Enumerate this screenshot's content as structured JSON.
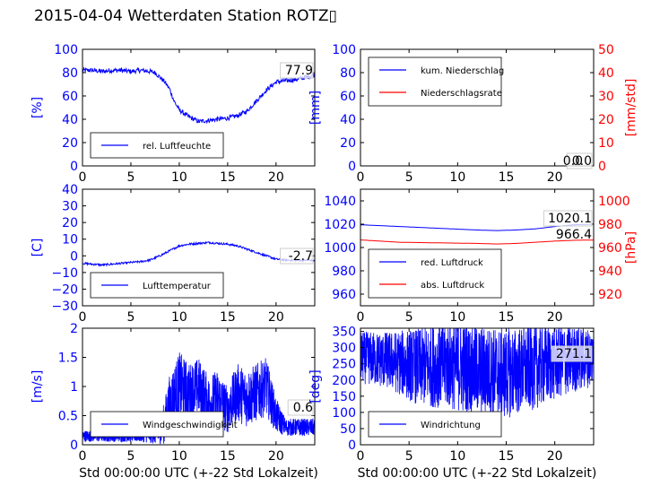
{
  "title": "2015-04-04 Wetterdaten Station ROTZ▯",
  "colors": {
    "blue": "#0000ff",
    "red": "#ff0000",
    "black": "#000000"
  },
  "chart_data": [
    {
      "id": "humidity",
      "type": "line",
      "xlim": [
        0,
        24
      ],
      "xticks": [
        0,
        5,
        10,
        15,
        20
      ],
      "xlabel": "",
      "ylim": [
        0,
        100
      ],
      "yticks": [
        0,
        20,
        40,
        60,
        80,
        100
      ],
      "ylabel": "[%]",
      "value_label": "77.9",
      "legend_position": "lower-left",
      "series": [
        {
          "name": "rel. Luftfeuchte",
          "color": "#0000ff",
          "noise": 2,
          "x": [
            0,
            1,
            2,
            3,
            4,
            5,
            6,
            7,
            7.5,
            8,
            8.5,
            9,
            9.5,
            10,
            11,
            12,
            13,
            14,
            15,
            16,
            17,
            18,
            19,
            20,
            21,
            22,
            23,
            24
          ],
          "y": [
            82,
            82,
            81,
            82,
            82,
            81,
            82,
            81,
            80,
            76,
            72,
            66,
            55,
            48,
            42,
            38,
            39,
            40,
            41,
            43,
            47,
            56,
            65,
            72,
            73,
            74,
            76,
            78
          ]
        }
      ]
    },
    {
      "id": "precip",
      "type": "line",
      "xlim": [
        0,
        24
      ],
      "xticks": [
        0,
        5,
        10,
        15,
        20
      ],
      "xlabel": "",
      "ylim": [
        0,
        100
      ],
      "yticks": [
        0,
        20,
        40,
        60,
        80,
        100
      ],
      "ylabel": "[mm]",
      "ylim2": [
        0,
        50
      ],
      "yticks2": [
        0,
        10,
        20,
        30,
        40,
        50
      ],
      "ylabel2": "[mm/std]",
      "value_label": "0.0",
      "value_label2": "0.0",
      "legend_position": "upper-left",
      "series": [
        {
          "name": "kum. Niederschlag",
          "color": "#0000ff",
          "x": [
            0,
            24
          ],
          "y": [
            0,
            0
          ]
        },
        {
          "name": "Niederschlagsrate",
          "color": "#ff0000",
          "axis": "right",
          "x": [
            0,
            24
          ],
          "y": [
            0,
            0
          ]
        }
      ]
    },
    {
      "id": "temperature",
      "type": "line",
      "xlim": [
        0,
        24
      ],
      "xticks": [
        0,
        5,
        10,
        15,
        20
      ],
      "xlabel": "",
      "ylim": [
        -30,
        40
      ],
      "yticks": [
        -30,
        -20,
        -10,
        0,
        10,
        20,
        30,
        40
      ],
      "ylabel": "[C]",
      "value_label": "-2.7",
      "legend_position": "lower-left",
      "series": [
        {
          "name": "Lufttemperatur",
          "color": "#0000ff",
          "noise": 0.6,
          "x": [
            0,
            1,
            2,
            3,
            4,
            5,
            6,
            7,
            8,
            9,
            10,
            11,
            12,
            13,
            14,
            15,
            16,
            17,
            18,
            19,
            20,
            21,
            22,
            23,
            24
          ],
          "y": [
            -4.5,
            -5,
            -5.5,
            -5,
            -4.5,
            -4,
            -3.5,
            -2.5,
            0,
            3,
            6,
            7,
            7.5,
            8,
            7.5,
            7,
            6,
            4,
            2,
            0,
            -2,
            -2.5,
            -2.7,
            -2.7,
            -2.7
          ]
        }
      ]
    },
    {
      "id": "pressure",
      "type": "line",
      "xlim": [
        0,
        24
      ],
      "xticks": [
        0,
        5,
        10,
        15,
        20
      ],
      "xlabel": "",
      "ylim": [
        950,
        1050
      ],
      "yticks": [
        960,
        980,
        1000,
        1020,
        1040
      ],
      "ylabel": "",
      "ylim2": [
        910,
        1010
      ],
      "yticks2": [
        920,
        940,
        960,
        980,
        1000
      ],
      "ylabel2": "[hPa]",
      "value_label": "1020.1",
      "value_label2": "966.4",
      "legend_position": "lower-left",
      "series": [
        {
          "name": "red. Luftdruck",
          "color": "#0000ff",
          "x": [
            0,
            4,
            8,
            12,
            14,
            16,
            18,
            20,
            22,
            24
          ],
          "y": [
            1019.5,
            1018,
            1016.5,
            1015,
            1014.5,
            1015,
            1016,
            1018,
            1019.5,
            1020.1
          ]
        },
        {
          "name": "abs. Luftdruck",
          "color": "#ff0000",
          "axis": "right",
          "x": [
            0,
            4,
            8,
            12,
            14,
            16,
            18,
            20,
            22,
            24
          ],
          "y": [
            966.5,
            964.5,
            964,
            963.5,
            963,
            963.5,
            964.5,
            965.5,
            966.2,
            966.4
          ]
        }
      ]
    },
    {
      "id": "windspeed",
      "type": "line",
      "xlim": [
        0,
        24
      ],
      "xticks": [
        0,
        5,
        10,
        15,
        20
      ],
      "xlabel": "Std 00:00:00 UTC (+-22 Std Lokalzeit)",
      "ylim": [
        0,
        2.0
      ],
      "yticks": [
        0.0,
        0.5,
        1.0,
        1.5,
        2.0
      ],
      "ylabel": "[m/s]",
      "value_label": "0.6",
      "legend_position": "lower-left",
      "series": [
        {
          "name": "Windgeschwindigkeit",
          "color": "#0000ff",
          "noisy": true,
          "x": [
            0,
            2,
            4,
            6,
            8,
            8.5,
            9,
            10,
            11,
            12,
            13,
            14,
            15,
            16,
            17,
            18,
            19,
            20,
            21,
            22,
            23,
            24
          ],
          "y": [
            0.15,
            0.15,
            0.15,
            0.15,
            0.2,
            0.4,
            0.7,
            1.0,
            0.9,
            1.0,
            0.7,
            0.8,
            0.6,
            0.9,
            0.8,
            0.9,
            1.0,
            0.5,
            0.3,
            0.3,
            0.3,
            0.3
          ],
          "amp": [
            0.1,
            0.1,
            0.1,
            0.1,
            0.2,
            0.4,
            0.5,
            0.6,
            0.5,
            0.5,
            0.5,
            0.5,
            0.4,
            0.5,
            0.5,
            0.5,
            0.5,
            0.3,
            0.15,
            0.15,
            0.15,
            0.15
          ]
        }
      ]
    },
    {
      "id": "winddir",
      "type": "line",
      "xlim": [
        0,
        24
      ],
      "xticks": [
        0,
        5,
        10,
        15,
        20
      ],
      "xlabel": "Std 00:00:00 UTC (+-22 Std Lokalzeit)",
      "ylim": [
        0,
        360
      ],
      "yticks": [
        0,
        50,
        100,
        150,
        200,
        250,
        300,
        350
      ],
      "ylabel": "[deg]",
      "value_label": "271.1",
      "legend_position": "lower-left",
      "series": [
        {
          "name": "Windrichtung",
          "color": "#0000ff",
          "noisy": true,
          "x": [
            0,
            3,
            6,
            9,
            12,
            15,
            18,
            21,
            24
          ],
          "y": [
            270,
            260,
            240,
            250,
            230,
            220,
            240,
            260,
            271
          ],
          "amp": [
            80,
            90,
            120,
            140,
            140,
            140,
            130,
            110,
            90
          ]
        }
      ]
    }
  ]
}
